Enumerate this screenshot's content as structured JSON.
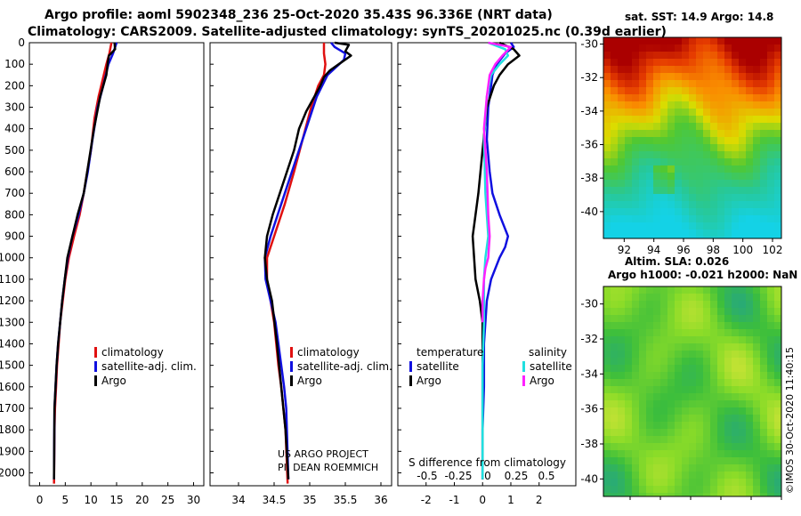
{
  "title": {
    "line1": "Argo profile: aoml 5902348_236 25-Oct-2020 35.43S 96.336E (NRT data)",
    "line2": "Climatology: CARS2009. Satellite-adjusted climatology: synTS_20201025.nc (0.39d earlier)"
  },
  "credits": {
    "project": "US ARGO PROJECT",
    "pi": "PI: DEAN ROEMMICH",
    "watermark": "©IMOS 30-Oct-2020 11:40:15"
  },
  "colors": {
    "climatology": "#e01010",
    "satellite": "#1010e0",
    "argo": "#000000",
    "sal_satellite": "#20e0e0",
    "sal_argo": "#ff20ff"
  },
  "chart_data": [
    {
      "type": "line",
      "name": "temperature-profile",
      "xlabel": "",
      "ylabel": "",
      "xlim": [
        -2,
        32
      ],
      "ylim": [
        2060,
        0
      ],
      "xticks": [
        0,
        5,
        10,
        15,
        20,
        25,
        30
      ],
      "yticks": [
        0,
        100,
        200,
        300,
        400,
        500,
        600,
        700,
        800,
        900,
        1000,
        1100,
        1200,
        1300,
        1400,
        1500,
        1600,
        1700,
        1800,
        1900,
        2000
      ],
      "legend": [
        "climatology",
        "satellite-adj. clim.",
        "Argo"
      ],
      "series": [
        {
          "name": "climatology",
          "x": [
            14.0,
            13.6,
            13.0,
            12.5,
            11.5,
            10.7,
            10.0,
            9.3,
            8.6,
            7.8,
            6.7,
            5.7,
            5.0,
            4.5,
            4.0,
            3.7,
            3.4,
            3.2,
            3.0,
            2.9,
            2.8
          ],
          "y": [
            0,
            50,
            100,
            150,
            250,
            350,
            500,
            600,
            700,
            800,
            900,
            1000,
            1100,
            1200,
            1300,
            1400,
            1500,
            1600,
            1700,
            1800,
            2050
          ]
        },
        {
          "name": "satellite-adj. clim.",
          "x": [
            15.0,
            14.3,
            13.4,
            12.9,
            12.4,
            11.3,
            10.3,
            9.4,
            8.6,
            7.6,
            6.4,
            5.5,
            4.9,
            4.4,
            4.0,
            3.6,
            3.3,
            3.1,
            2.9,
            2.8
          ],
          "y": [
            0,
            50,
            100,
            150,
            200,
            300,
            450,
            600,
            700,
            800,
            900,
            1000,
            1100,
            1200,
            1300,
            1400,
            1500,
            1600,
            1700,
            2030
          ]
        },
        {
          "name": "Argo",
          "x": [
            14.6,
            14.7,
            13.5,
            13.3,
            13.0,
            11.8,
            10.6,
            9.6,
            8.6,
            7.4,
            6.4,
            5.4,
            4.9,
            4.4,
            4.0,
            3.6,
            3.3,
            3.1,
            2.9,
            2.8
          ],
          "y": [
            0,
            30,
            60,
            90,
            150,
            250,
            400,
            550,
            700,
            800,
            900,
            1000,
            1100,
            1200,
            1300,
            1400,
            1500,
            1600,
            1700,
            2030
          ]
        }
      ]
    },
    {
      "type": "line",
      "name": "salinity-profile",
      "xlabel": "",
      "ylabel": "",
      "xlim": [
        33.6,
        36.15
      ],
      "ylim": [
        2060,
        0
      ],
      "xticks": [
        34,
        34.5,
        35,
        35.5,
        36
      ],
      "xtick_labels": [
        "34",
        "34.5",
        "35",
        "35.5",
        "36"
      ],
      "legend": [
        "climatology",
        "satellite-adj. clim.",
        "Argo"
      ],
      "series": [
        {
          "name": "climatology",
          "x": [
            35.2,
            35.2,
            35.22,
            35.2,
            35.12,
            35.02,
            34.9,
            34.78,
            34.65,
            34.5,
            34.4,
            34.4,
            34.45,
            34.5,
            34.53,
            34.56,
            34.6,
            34.63,
            34.66,
            34.69
          ],
          "y": [
            0,
            50,
            100,
            150,
            200,
            300,
            450,
            600,
            750,
            900,
            1000,
            1100,
            1200,
            1300,
            1400,
            1500,
            1600,
            1700,
            1800,
            2050
          ]
        },
        {
          "name": "satellite-adj. clim.",
          "x": [
            35.3,
            35.35,
            35.5,
            35.48,
            35.25,
            35.1,
            35.0,
            34.9,
            34.75,
            34.6,
            34.45,
            34.37,
            34.38,
            34.45,
            34.52,
            34.56,
            34.6,
            34.64,
            34.67,
            34.7
          ],
          "y": [
            0,
            20,
            50,
            80,
            150,
            250,
            350,
            450,
            600,
            750,
            900,
            1000,
            1100,
            1200,
            1300,
            1400,
            1500,
            1600,
            1700,
            2030
          ]
        },
        {
          "name": "Argo",
          "x": [
            35.35,
            35.55,
            35.5,
            35.58,
            35.45,
            35.28,
            35.2,
            35.15,
            35.05,
            34.95,
            34.85,
            34.78,
            34.68,
            34.58,
            34.48,
            34.4,
            34.37,
            34.4,
            34.47,
            34.54,
            34.6,
            34.66,
            34.7
          ],
          "y": [
            0,
            10,
            40,
            60,
            90,
            130,
            160,
            200,
            260,
            320,
            400,
            500,
            600,
            700,
            800,
            900,
            1000,
            1100,
            1200,
            1400,
            1600,
            1800,
            2030
          ]
        }
      ]
    },
    {
      "type": "line",
      "name": "difference-from-climatology",
      "title": "S difference from climatology",
      "xlim": [
        -3,
        3.3
      ],
      "ylim": [
        2060,
        0
      ],
      "xticks": [
        -2,
        -1,
        0,
        1,
        2
      ],
      "xtick_labels": [
        "-2",
        "-1",
        "0",
        "1",
        "2"
      ],
      "top_tick_labels": [
        "-0.5",
        "-0.25",
        "0",
        "0.25",
        "0.5"
      ],
      "legend_temperature": {
        "heading": "temperature",
        "items": [
          "satellite",
          "Argo"
        ]
      },
      "legend_salinity": {
        "heading": "salinity",
        "items": [
          "satellite",
          "Argo"
        ]
      },
      "series": [
        {
          "name": "temperature satellite",
          "x": [
            1.0,
            1.1,
            0.8,
            0.5,
            0.35,
            0.3,
            0.2,
            0.15,
            0.25,
            0.35,
            0.6,
            0.9,
            0.8,
            0.6,
            0.3,
            0.15,
            0.05,
            0.05,
            0.0,
            0.0
          ],
          "y": [
            0,
            20,
            50,
            100,
            150,
            200,
            300,
            450,
            600,
            700,
            800,
            900,
            950,
            1000,
            1100,
            1200,
            1400,
            1600,
            1800,
            2030
          ]
        },
        {
          "name": "temperature Argo",
          "x": [
            0.6,
            1.1,
            1.3,
            0.9,
            0.6,
            0.4,
            0.15,
            0.0,
            -0.15,
            -0.25,
            -0.35,
            -0.3,
            -0.25,
            -0.1,
            0.0,
            0.0,
            0.0,
            0.0
          ],
          "y": [
            0,
            30,
            60,
            100,
            150,
            200,
            300,
            500,
            700,
            800,
            900,
            1000,
            1100,
            1200,
            1300,
            1500,
            1800,
            2030
          ]
        },
        {
          "name": "salinity satellite",
          "x": [
            0.2,
            0.8,
            0.9,
            0.6,
            0.3,
            0.15,
            0.05,
            0.1,
            0.2,
            0.1,
            0.05,
            0.05,
            0.0,
            0.0,
            0.0
          ],
          "y": [
            0,
            30,
            60,
            100,
            150,
            250,
            450,
            700,
            900,
            1000,
            1100,
            1300,
            1500,
            1800,
            2030
          ]
        },
        {
          "name": "salinity Argo",
          "x": [
            0.2,
            1.0,
            0.7,
            0.45,
            0.25,
            0.15,
            0.05,
            0.15,
            0.2,
            0.25,
            0.2,
            0.1,
            0.05,
            0.0,
            0.0
          ],
          "y": [
            0,
            20,
            60,
            100,
            150,
            250,
            400,
            600,
            800,
            900,
            1000,
            1050,
            1100,
            1200,
            1300
          ]
        }
      ]
    },
    {
      "type": "heatmap",
      "name": "sst-map",
      "title": "sat. SST: 14.9 Argo: 14.8",
      "xlim": [
        90.6,
        102.6
      ],
      "ylim": [
        -41.6,
        -29.6
      ],
      "xticks": [
        92,
        94,
        96,
        98,
        100,
        102
      ],
      "yticks": [
        -30,
        -32,
        -34,
        -36,
        -38,
        -40
      ],
      "xtick_labels": [
        "92",
        "94",
        "96",
        "98",
        "100",
        "102"
      ],
      "ytick_labels": [
        "-30",
        "-32",
        "-34",
        "-36",
        "-38",
        "-40"
      ]
    },
    {
      "type": "heatmap",
      "name": "sla-map",
      "title_line1": "Altim. SLA: 0.026",
      "title_line2": "Argo h1000: -0.021 h2000: NaN",
      "xlim": [
        90.6,
        102.6
      ],
      "ylim": [
        -41.0,
        -29.0
      ],
      "yticks": [
        -30,
        -32,
        -34,
        -36,
        -38,
        -40
      ],
      "ytick_labels": [
        "-30",
        "-32",
        "-34",
        "-36",
        "-38",
        "-40"
      ]
    }
  ]
}
